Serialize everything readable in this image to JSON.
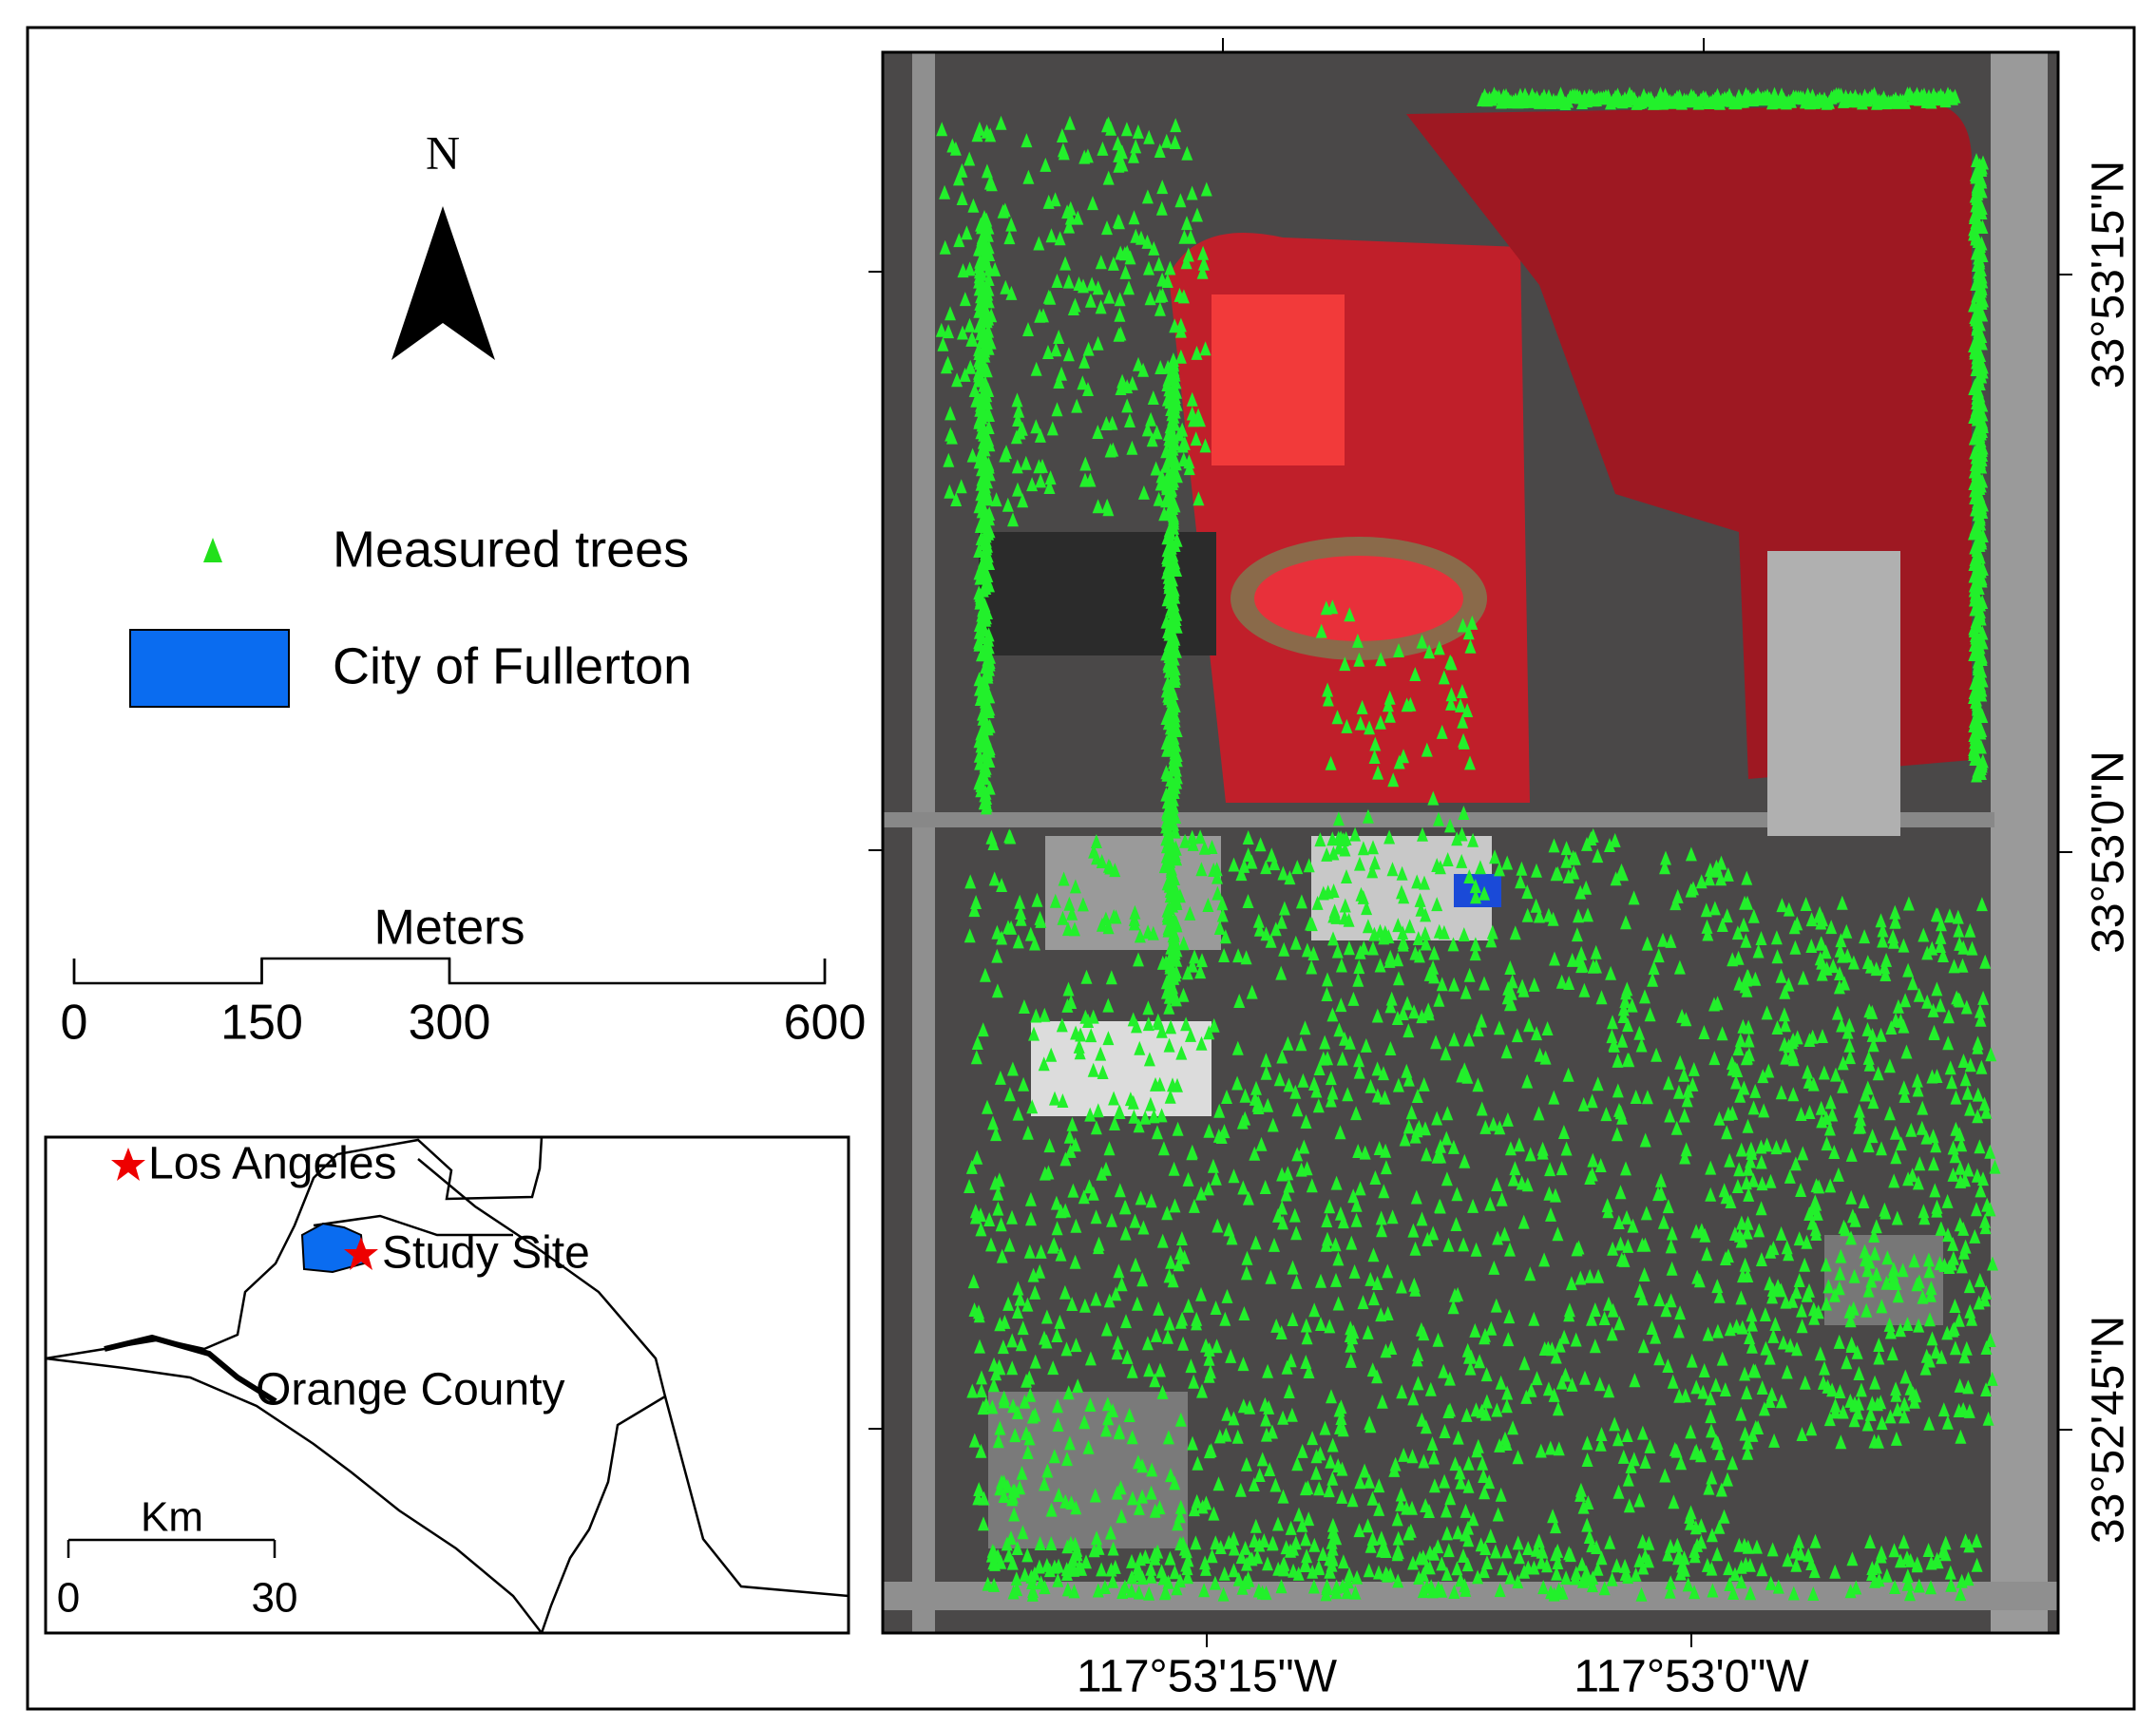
{
  "north": "N",
  "legend": {
    "items": [
      {
        "label": "Measured trees"
      },
      {
        "label": "City of Fullerton"
      }
    ]
  },
  "scale_bar": {
    "unit": "Meters",
    "ticks": [
      0,
      150,
      300,
      600
    ]
  },
  "inset": {
    "places": [
      "Los Angeles",
      "Study Site",
      "Orange County"
    ],
    "scale_bar": {
      "unit": "Km",
      "ticks": [
        0,
        30
      ]
    }
  },
  "map": {
    "longitude_labels": [
      "117°53'15\"W",
      "117°53'0\"W"
    ],
    "latitude_labels": [
      "33°53'15\"N",
      "33°53'0\"N",
      "33°52'45\"N"
    ]
  }
}
